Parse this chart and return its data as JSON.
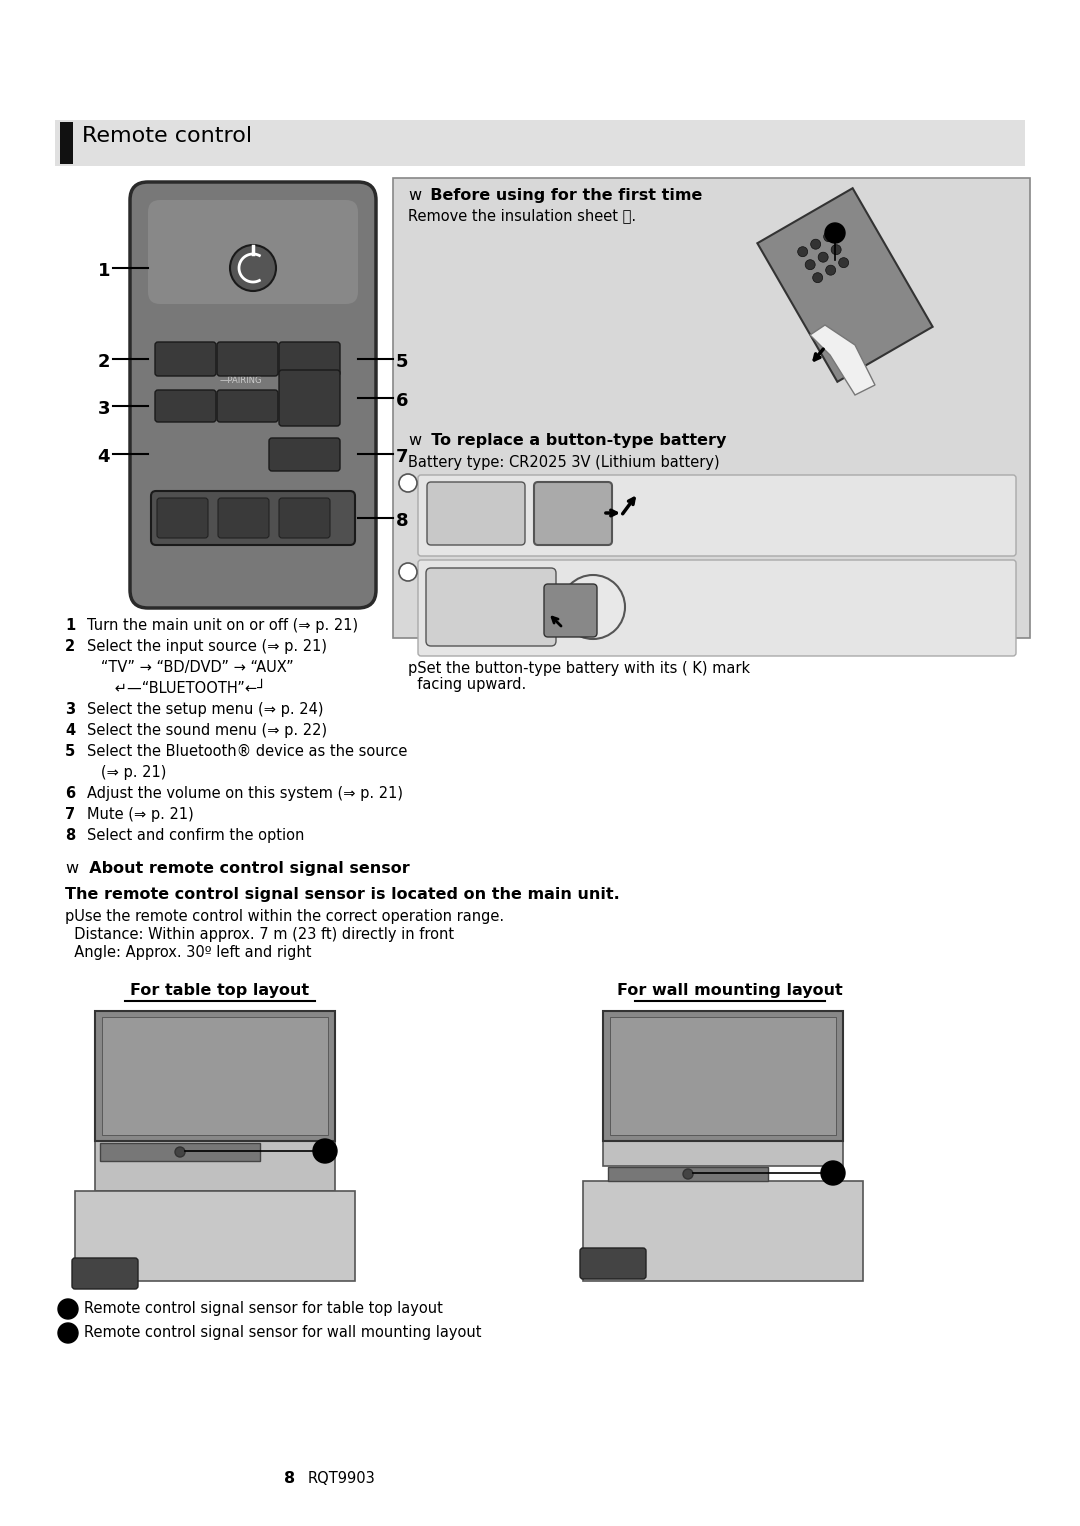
{
  "bg_color": "#ffffff",
  "header_bg": "#e0e0e0",
  "header_bar_color": "#111111",
  "header_text": "Remote control",
  "panel_bg": "#d8d8d8",
  "panel_border": "#888888",
  "before_title_w": "w",
  "before_title_rest": "  Before using for the first time",
  "before_body": "Remove the insulation sheet Ⓐ.",
  "replace_title_w": "w",
  "replace_title_rest": "  To replace a button-type battery",
  "replace_body": "Battery type: CR2025 3V (Lithium battery)",
  "battery_note_line1": "pSet the button-type battery with its ( K) mark",
  "battery_note_line2": "  facing upward.",
  "numbered_items": [
    [
      "1",
      "Turn the main unit on or off (⇒ p. 21)"
    ],
    [
      "2",
      "Select the input source (⇒ p. 21)"
    ],
    [
      "",
      "   “TV” → “BD/DVD” → “AUX”"
    ],
    [
      "",
      "      ↵—“BLUETOOTH”←┘"
    ],
    [
      "3",
      "Select the setup menu (⇒ p. 24)"
    ],
    [
      "4",
      "Select the sound menu (⇒ p. 22)"
    ],
    [
      "5",
      "Select the Bluetooth® device as the source"
    ],
    [
      "",
      "   (⇒ p. 21)"
    ],
    [
      "6",
      "Adjust the volume on this system (⇒ p. 21)"
    ],
    [
      "7",
      "Mute (⇒ p. 21)"
    ],
    [
      "8",
      "Select and confirm the option"
    ]
  ],
  "about_w": "w",
  "about_rest": "  About remote control signal sensor",
  "about_bold": "The remote control signal sensor is located on the main unit.",
  "about_p": "pUse the remote control within the correct operation range.",
  "about_dist": "  Distance: Within approx. 7 m (23 ft) directly in front",
  "about_angle": "  Angle: Approx. 30º left and right",
  "table_label": "For table top layout",
  "wall_label": "For wall mounting layout",
  "legend_b": "Remote control signal sensor for table top layout",
  "legend_c": "Remote control signal sensor for wall mounting layout",
  "page_num": "8",
  "page_code": "RQT9903",
  "body_sz": 10.5,
  "bold_sz": 11.5,
  "header_sz": 16,
  "num_sz": 13
}
